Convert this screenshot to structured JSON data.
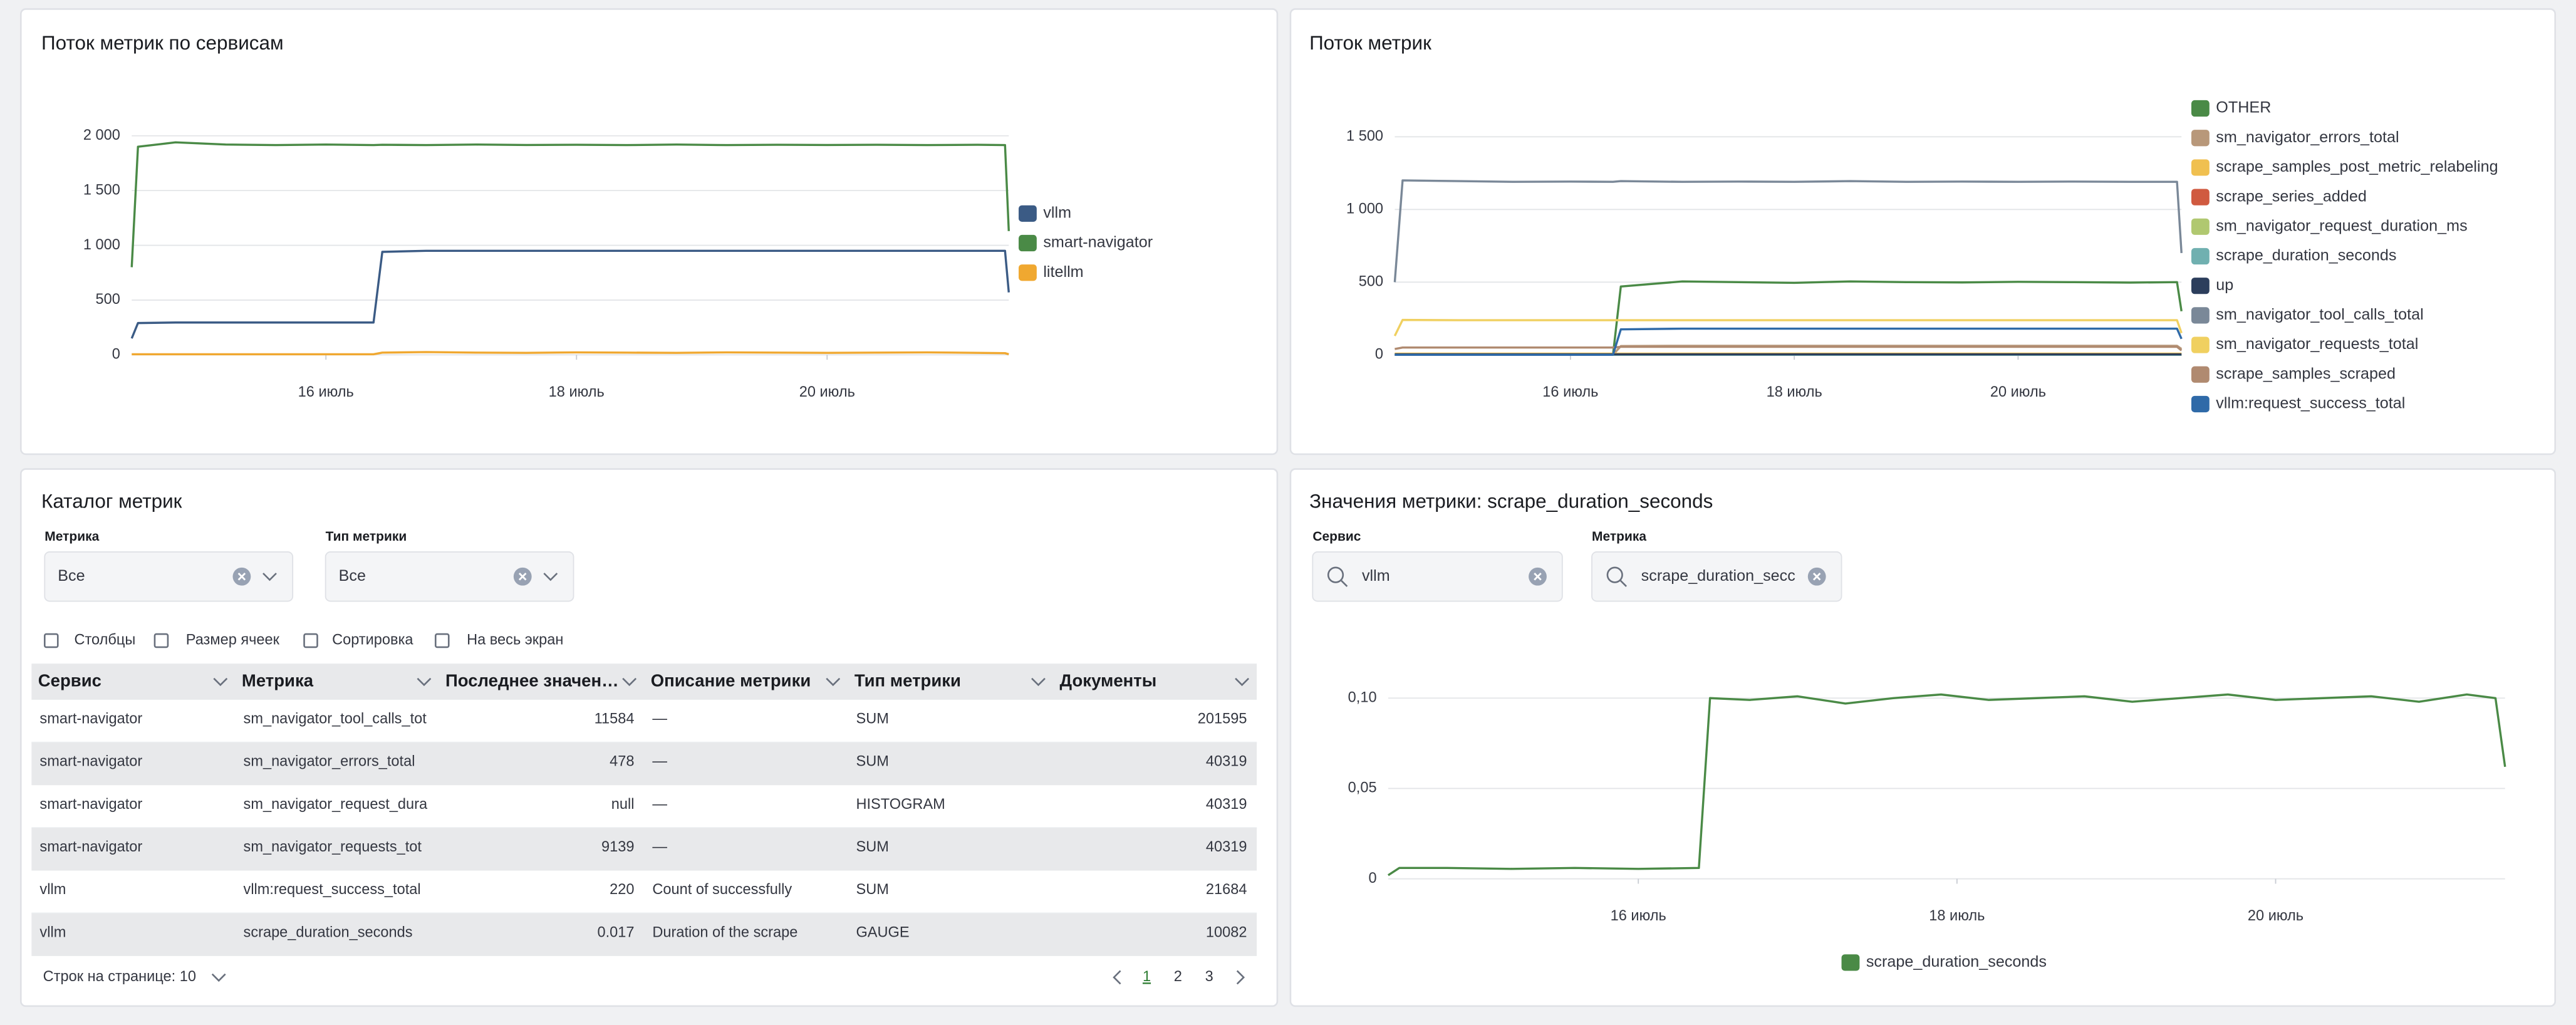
{
  "chart_data": [
    {
      "type": "line",
      "title": "Поток метрик по сервисам",
      "x": [
        14.45,
        14.5,
        14.8,
        15.2,
        15.6,
        16.0,
        16.38,
        16.45,
        16.8,
        17.2,
        17.6,
        18.0,
        18.4,
        18.8,
        19.2,
        19.6,
        20.0,
        20.4,
        20.8,
        21.2,
        21.42,
        21.45
      ],
      "xlim": [
        14.45,
        21.45
      ],
      "xticks": [
        {
          "value": 16,
          "label": "16 июль"
        },
        {
          "value": 18,
          "label": "18 июль"
        },
        {
          "value": 20,
          "label": "20 июль"
        }
      ],
      "ylim": [
        0,
        2100
      ],
      "yticks": [
        0,
        500,
        {
          "value": 1000,
          "label": "1 000"
        },
        {
          "value": 1500,
          "label": "1 500"
        },
        {
          "value": 2000,
          "label": "2 000"
        }
      ],
      "grid": true,
      "legend": "right",
      "series": [
        {
          "name": "vllm",
          "color": "#3b5b85",
          "values": [
            150,
            290,
            295,
            295,
            295,
            295,
            295,
            940,
            950,
            950,
            950,
            950,
            950,
            950,
            950,
            950,
            950,
            950,
            950,
            950,
            950,
            570
          ]
        },
        {
          "name": "smart-navigator",
          "color": "#4a8a46",
          "values": [
            800,
            1900,
            1940,
            1920,
            1915,
            1920,
            1915,
            1918,
            1915,
            1920,
            1916,
            1918,
            1915,
            1920,
            1915,
            1918,
            1916,
            1918,
            1915,
            1918,
            1915,
            1130
          ]
        },
        {
          "name": "litellm",
          "color": "#f0a830",
          "values": [
            5,
            5,
            5,
            5,
            5,
            5,
            5,
            20,
            25,
            20,
            18,
            22,
            20,
            18,
            22,
            20,
            18,
            20,
            22,
            18,
            15,
            5
          ]
        }
      ]
    },
    {
      "type": "line",
      "title": "Поток метрик",
      "x": [
        14.43,
        14.5,
        15.0,
        15.5,
        16.0,
        16.38,
        16.45,
        17.0,
        17.5,
        18.0,
        18.5,
        19.0,
        19.5,
        20.0,
        20.5,
        21.0,
        21.42,
        21.46
      ],
      "xlim": [
        14.43,
        21.46
      ],
      "xticks": [
        {
          "value": 16,
          "label": "16 июль"
        },
        {
          "value": 18,
          "label": "18 июль"
        },
        {
          "value": 20,
          "label": "20 июль"
        }
      ],
      "ylim": [
        0,
        1650
      ],
      "yticks": [
        0,
        500,
        {
          "value": 1000,
          "label": "1 000"
        },
        {
          "value": 1500,
          "label": "1 500"
        }
      ],
      "grid": true,
      "legend": "right",
      "series": [
        {
          "name": "OTHER",
          "color": "#4a8a46",
          "values": [
            0,
            0,
            0,
            0,
            0,
            0,
            470,
            505,
            500,
            495,
            505,
            500,
            498,
            502,
            500,
            497,
            500,
            300
          ]
        },
        {
          "name": "sm_navigator_errors_total",
          "color": "#b8987a",
          "values": [
            0,
            0,
            0,
            0,
            0,
            0,
            60,
            62,
            62,
            62,
            62,
            62,
            62,
            62,
            62,
            62,
            62,
            40
          ]
        },
        {
          "name": "scrape_samples_post_metric_relabeling",
          "color": "#f0c050",
          "values": [
            8,
            8,
            8,
            8,
            8,
            8,
            8,
            8,
            8,
            8,
            8,
            8,
            8,
            8,
            8,
            8,
            8,
            8
          ]
        },
        {
          "name": "scrape_series_added",
          "color": "#d05a40",
          "values": [
            0,
            0,
            0,
            0,
            0,
            0,
            0,
            0,
            0,
            0,
            0,
            0,
            0,
            0,
            0,
            0,
            0,
            0
          ]
        },
        {
          "name": "sm_navigator_request_duration_ms",
          "color": "#b0c870",
          "values": [
            0,
            0,
            0,
            0,
            0,
            0,
            2,
            2,
            2,
            2,
            2,
            2,
            2,
            2,
            2,
            2,
            2,
            2
          ]
        },
        {
          "name": "scrape_duration_seconds",
          "color": "#70b0b0",
          "values": [
            0,
            0,
            0,
            0,
            0,
            0,
            0,
            0,
            0,
            0,
            0,
            0,
            0,
            0,
            0,
            0,
            0,
            0
          ]
        },
        {
          "name": "up",
          "color": "#2c3e5c",
          "values": [
            3,
            3,
            3,
            3,
            3,
            3,
            3,
            3,
            3,
            3,
            3,
            3,
            3,
            3,
            3,
            3,
            3,
            3
          ]
        },
        {
          "name": "sm_navigator_tool_calls_total",
          "color": "#7a8898",
          "values": [
            500,
            1200,
            1195,
            1190,
            1192,
            1190,
            1195,
            1190,
            1192,
            1190,
            1195,
            1190,
            1192,
            1190,
            1192,
            1190,
            1190,
            700
          ]
        },
        {
          "name": "sm_navigator_requests_total",
          "color": "#f0d060",
          "values": [
            130,
            240,
            238,
            238,
            238,
            238,
            238,
            238,
            238,
            238,
            238,
            238,
            238,
            238,
            238,
            238,
            238,
            150
          ]
        },
        {
          "name": "scrape_samples_scraped",
          "color": "#b08a70",
          "values": [
            40,
            50,
            50,
            50,
            50,
            50,
            55,
            55,
            55,
            55,
            55,
            55,
            55,
            55,
            55,
            55,
            55,
            30
          ]
        },
        {
          "name": "vllm:request_success_total",
          "color": "#2f6aa8",
          "values": [
            0,
            0,
            0,
            0,
            0,
            0,
            175,
            180,
            180,
            180,
            180,
            180,
            180,
            180,
            180,
            180,
            180,
            110
          ]
        }
      ]
    },
    {
      "type": "line",
      "title": "Значения метрики: scrape_duration_seconds",
      "x": [
        14.43,
        14.5,
        14.8,
        15.2,
        15.6,
        16.0,
        16.38,
        16.45,
        16.7,
        17.0,
        17.3,
        17.6,
        17.9,
        18.2,
        18.5,
        18.8,
        19.1,
        19.4,
        19.7,
        20.0,
        20.3,
        20.6,
        20.9,
        21.2,
        21.38,
        21.44
      ],
      "xlim": [
        14.43,
        21.44
      ],
      "xticks": [
        {
          "value": 16,
          "label": "16 июль"
        },
        {
          "value": 18,
          "label": "18 июль"
        },
        {
          "value": 20,
          "label": "20 июль"
        }
      ],
      "ylim": [
        0,
        0.11
      ],
      "yticks": [
        0,
        {
          "value": 0.05,
          "label": "0,05"
        },
        {
          "value": 0.1,
          "label": "0,10"
        }
      ],
      "grid": true,
      "legend": "bottom",
      "series": [
        {
          "name": "scrape_duration_seconds",
          "color": "#4a8a46",
          "values": [
            0.002,
            0.006,
            0.006,
            0.0055,
            0.006,
            0.0055,
            0.006,
            0.1,
            0.099,
            0.101,
            0.097,
            0.1,
            0.102,
            0.099,
            0.1,
            0.101,
            0.098,
            0.1,
            0.102,
            0.099,
            0.1,
            0.101,
            0.098,
            0.102,
            0.1,
            0.062
          ]
        }
      ]
    }
  ],
  "catalog": {
    "title": "Каталог метрик",
    "filters": [
      {
        "label": "Метрика",
        "value": "Все"
      },
      {
        "label": "Тип метрики",
        "value": "Все"
      }
    ],
    "toolbar": [
      "Столбцы",
      "Размер ячеек",
      "Сортировка",
      "На весь экран"
    ],
    "table": {
      "header": [
        "Сервис",
        "Метрика",
        "Последнее значен…",
        "Описание метрики",
        "Тип метрики",
        "Документы"
      ],
      "rows": [
        [
          "smart-navigator",
          "sm_navigator_tool_calls_tot",
          "11584",
          "—",
          "SUM",
          "201595"
        ],
        [
          "smart-navigator",
          "sm_navigator_errors_total",
          "478",
          "—",
          "SUM",
          "40319"
        ],
        [
          "smart-navigator",
          "sm_navigator_request_dura",
          "null",
          "—",
          "HISTOGRAM",
          "40319"
        ],
        [
          "smart-navigator",
          "sm_navigator_requests_tot",
          "9139",
          "—",
          "SUM",
          "40319"
        ],
        [
          "vllm",
          "vllm:request_success_total",
          "220",
          "Count of successfully",
          "SUM",
          "21684"
        ],
        [
          "vllm",
          "scrape_duration_seconds",
          "0.017",
          "Duration of the scrape",
          "GAUGE",
          "10082"
        ]
      ]
    },
    "pagination": {
      "rows_per_page": "Строк на странице: 10",
      "pages": [
        "1",
        "2",
        "3"
      ]
    }
  },
  "metric_values": {
    "filters": [
      {
        "label": "Сервис",
        "value": "vllm"
      },
      {
        "label": "Метрика",
        "value": "scrape_duration_secc"
      }
    ]
  }
}
